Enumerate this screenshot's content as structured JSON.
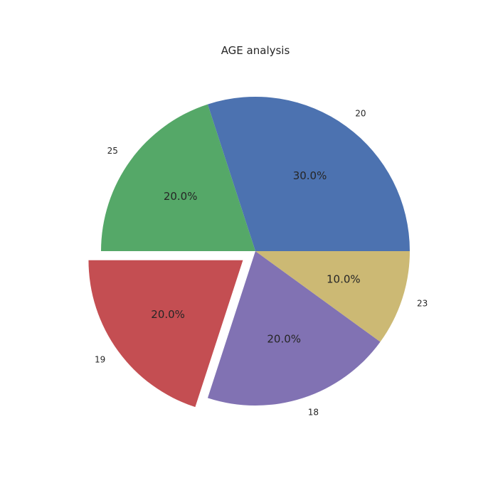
{
  "chart_data": {
    "type": "pie",
    "title": "AGE analysis",
    "labels": [
      "20",
      "25",
      "19",
      "18",
      "23"
    ],
    "values": [
      30.0,
      20.0,
      20.0,
      20.0,
      10.0
    ],
    "percent_labels": [
      "30.0%",
      "20.0%",
      "20.0%",
      "20.0%",
      "10.0%"
    ],
    "colors": [
      "#4c72b0",
      "#55a868",
      "#c44e52",
      "#8172b3",
      "#ccb974"
    ],
    "exploded": [
      false,
      false,
      true,
      false,
      false
    ],
    "start_angle": 0,
    "direction": "counterclockwise"
  }
}
